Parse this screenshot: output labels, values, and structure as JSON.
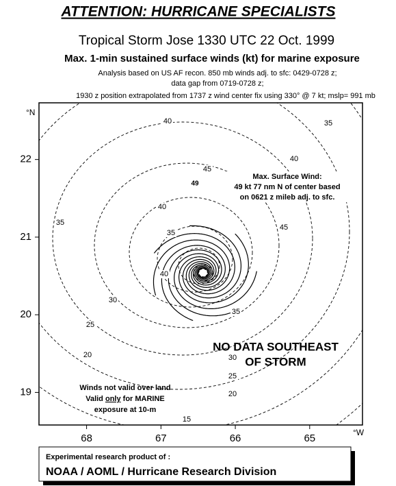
{
  "header": {
    "banner": "ATTENTION: HURRICANE SPECIALISTS",
    "title": "Tropical Storm Jose 1330 UTC 22 Oct. 1999",
    "subtitle": "Max. 1-min sustained surface winds (kt) for marine exposure",
    "notes": [
      "Analysis based on US AF recon. 850 mb winds adj. to sfc: 0429-0728 z;",
      "data gap from 0719-0728 z;",
      "1930 z position extrapolated from 1737 z wind center fix using  330° @ 7 kt; mslp= 991 mb"
    ]
  },
  "map": {
    "lat_range": [
      18.58,
      22.73
    ],
    "lon_range": [
      68.64,
      64.29
    ],
    "lat_ticks": [
      22,
      21,
      20,
      19
    ],
    "lon_ticks": [
      68,
      67,
      66,
      65
    ],
    "lat_unit": "°N",
    "lon_unit": "°W",
    "isotach_labels": [
      40,
      35,
      40,
      45,
      40,
      35,
      35,
      45,
      40,
      30,
      35,
      25,
      20,
      30,
      25,
      20,
      15
    ],
    "max_wind_marker": "49",
    "max_wind_note": [
      "Max. Surface Wind:",
      "49 kt 77 nm N of center based",
      "on 0621 z mileb adj. to sfc."
    ],
    "no_data_note": [
      "NO DATA SOUTHEAST",
      "OF STORM"
    ],
    "land_note": {
      "line1": "Winds not valid over land",
      "line2_pre": "Valid ",
      "line2_em": "only",
      "line2_post": " for MARINE",
      "line3": "exposure at 10-m"
    }
  },
  "footer": {
    "line1": "Experimental research product of :",
    "line2": "NOAA / AOML / Hurricane Research Division"
  }
}
